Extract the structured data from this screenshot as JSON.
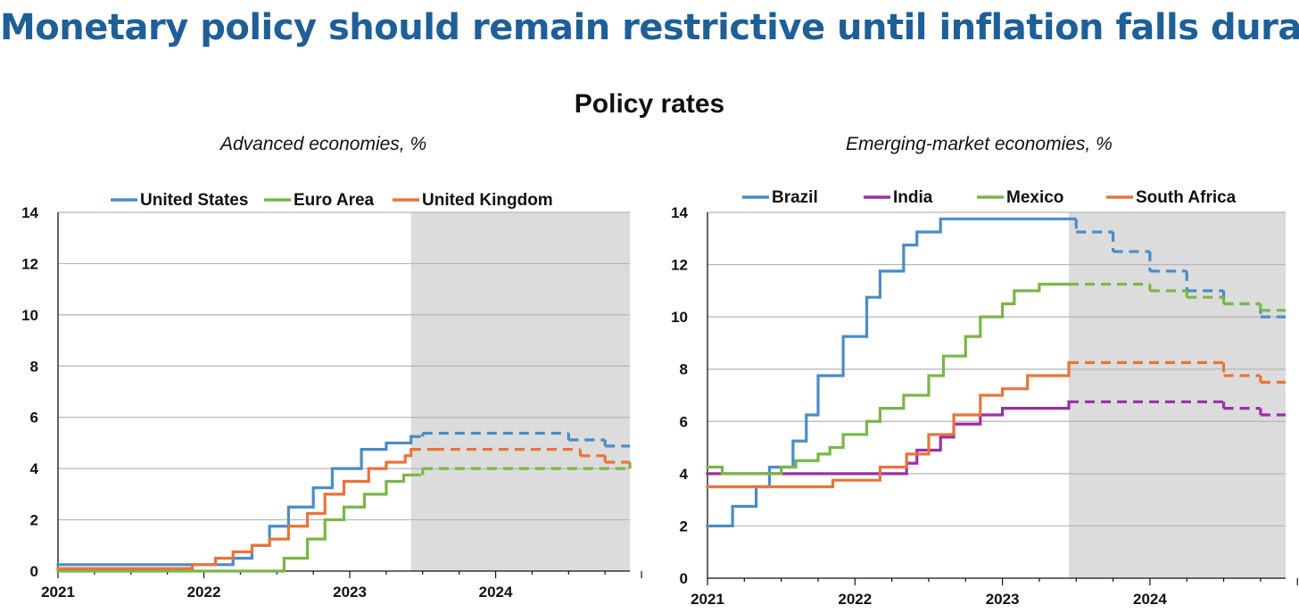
{
  "title": "Monetary policy should remain restrictive until inflation falls durably",
  "subtitle": "Policy rates",
  "chart_data": [
    {
      "type": "line",
      "step": true,
      "title": "Advanced economies, %",
      "xlabel": "",
      "ylabel": "",
      "xlim": [
        2021.0,
        2024.92
      ],
      "ylim": [
        0,
        14
      ],
      "yticks": [
        0,
        2,
        4,
        6,
        8,
        10,
        12,
        14
      ],
      "xticks": [
        "2021",
        "2022",
        "2023",
        "2024"
      ],
      "xtick_values": [
        2021,
        2022,
        2023,
        2024
      ],
      "projection_start": 2023.42,
      "projection_shading": "#dcdcdc",
      "grid": "horizontal",
      "legend": "top",
      "series": [
        {
          "name": "United States",
          "color": "#4a8cc6",
          "x": [
            2021.0,
            2022.2,
            2022.33,
            2022.45,
            2022.58,
            2022.75,
            2022.88,
            2023.08,
            2023.25,
            2023.42,
            2023.5,
            2024.5,
            2024.75,
            2024.92
          ],
          "y": [
            0.25,
            0.5,
            1.0,
            1.75,
            2.5,
            3.25,
            4.0,
            4.75,
            5.0,
            5.25,
            5.38,
            5.12,
            4.88,
            4.88
          ]
        },
        {
          "name": "Euro Area",
          "color": "#7ab648",
          "x": [
            2021.0,
            2022.55,
            2022.71,
            2022.83,
            2022.96,
            2023.1,
            2023.25,
            2023.37,
            2023.5,
            2024.92
          ],
          "y": [
            0.0,
            0.5,
            1.25,
            2.0,
            2.5,
            3.0,
            3.5,
            3.75,
            4.0,
            4.25
          ]
        },
        {
          "name": "United Kingdom",
          "color": "#e8743b",
          "x": [
            2021.0,
            2021.92,
            2022.08,
            2022.2,
            2022.33,
            2022.45,
            2022.58,
            2022.71,
            2022.83,
            2022.96,
            2023.13,
            2023.25,
            2023.38,
            2023.42,
            2023.58,
            2024.58,
            2024.75,
            2024.92
          ],
          "y": [
            0.1,
            0.25,
            0.5,
            0.75,
            1.0,
            1.25,
            1.75,
            2.25,
            3.0,
            3.5,
            4.0,
            4.25,
            4.5,
            4.75,
            4.75,
            4.5,
            4.25,
            4.25
          ]
        }
      ]
    },
    {
      "type": "line",
      "step": true,
      "title": "Emerging-market economies, %",
      "xlabel": "",
      "ylabel": "",
      "xlim": [
        2021.0,
        2024.92
      ],
      "ylim": [
        0,
        14
      ],
      "yticks": [
        0,
        2,
        4,
        6,
        8,
        10,
        12,
        14
      ],
      "xticks": [
        "2021",
        "2022",
        "2023",
        "2024"
      ],
      "xtick_values": [
        2021,
        2022,
        2023,
        2024
      ],
      "projection_start": 2023.45,
      "projection_shading": "#dcdcdc",
      "grid": "horizontal",
      "legend": "top",
      "series": [
        {
          "name": "Brazil",
          "color": "#4a8cc6",
          "x": [
            2021.0,
            2021.17,
            2021.33,
            2021.42,
            2021.58,
            2021.67,
            2021.75,
            2021.92,
            2022.08,
            2022.17,
            2022.33,
            2022.42,
            2022.58,
            2022.83,
            2023.0,
            2023.45,
            2023.5,
            2023.75,
            2024.0,
            2024.25,
            2024.5,
            2024.75,
            2024.92
          ],
          "y": [
            2.0,
            2.75,
            3.5,
            4.25,
            5.25,
            6.25,
            7.75,
            9.25,
            10.75,
            11.75,
            12.75,
            13.25,
            13.75,
            13.75,
            13.75,
            13.75,
            13.25,
            12.5,
            11.75,
            11.0,
            10.5,
            10.0,
            10.0
          ]
        },
        {
          "name": "India",
          "color": "#9b2fa6",
          "x": [
            2021.0,
            2022.35,
            2022.42,
            2022.58,
            2022.67,
            2022.85,
            2023.0,
            2023.17,
            2023.45,
            2024.5,
            2024.75,
            2024.92
          ],
          "y": [
            4.0,
            4.4,
            4.9,
            5.4,
            5.9,
            6.25,
            6.5,
            6.5,
            6.75,
            6.5,
            6.25,
            6.25
          ]
        },
        {
          "name": "Mexico",
          "color": "#7ab648",
          "x": [
            2021.0,
            2021.1,
            2021.5,
            2021.6,
            2021.75,
            2021.83,
            2021.92,
            2022.08,
            2022.17,
            2022.33,
            2022.5,
            2022.6,
            2022.75,
            2022.85,
            2023.0,
            2023.08,
            2023.25,
            2023.45,
            2024.0,
            2024.25,
            2024.5,
            2024.75,
            2024.92
          ],
          "y": [
            4.25,
            4.0,
            4.25,
            4.5,
            4.75,
            5.0,
            5.5,
            6.0,
            6.5,
            7.0,
            7.75,
            8.5,
            9.25,
            10.0,
            10.5,
            11.0,
            11.25,
            11.25,
            11.0,
            10.75,
            10.5,
            10.25,
            10.25
          ]
        },
        {
          "name": "South Africa",
          "color": "#e8743b",
          "x": [
            2021.0,
            2021.85,
            2022.17,
            2022.35,
            2022.5,
            2022.67,
            2022.85,
            2023.0,
            2023.17,
            2023.45,
            2024.5,
            2024.75,
            2024.92
          ],
          "y": [
            3.5,
            3.75,
            4.25,
            4.75,
            5.5,
            6.25,
            7.0,
            7.25,
            7.75,
            8.25,
            7.75,
            7.5,
            7.5
          ]
        }
      ]
    }
  ]
}
